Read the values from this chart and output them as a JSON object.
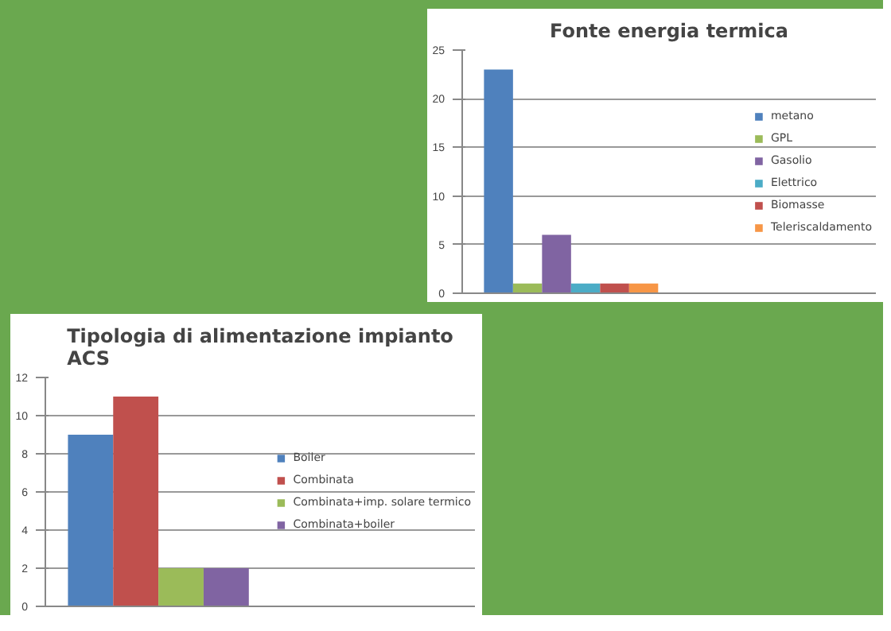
{
  "chart_data": [
    {
      "type": "bar",
      "title": "Fonte energia termica",
      "categories": [
        null
      ],
      "ylim": [
        0,
        25
      ],
      "yticks": [
        0,
        5,
        10,
        15,
        20,
        25
      ],
      "grid": "y",
      "legend": "right",
      "tick_labels": "y",
      "series": [
        {
          "name": "metano",
          "color": "#4f81bd",
          "values": [
            23
          ]
        },
        {
          "name": "GPL",
          "color": "#9bbb59",
          "values": [
            1
          ]
        },
        {
          "name": "Gasolio",
          "color": "#8064a2",
          "values": [
            6
          ]
        },
        {
          "name": "Elettrico",
          "color": "#4bacc6",
          "values": [
            1
          ]
        },
        {
          "name": "Biomasse",
          "color": "#c0504d",
          "values": [
            1
          ]
        },
        {
          "name": "Teleriscaldamento",
          "color": "#f79646",
          "values": [
            1
          ]
        }
      ]
    },
    {
      "type": "bar",
      "title": "Tipologia di alimentazione impianto\nACS",
      "categories": [
        null
      ],
      "ylim": [
        0,
        12
      ],
      "yticks": [
        0,
        2,
        4,
        6,
        8,
        10,
        12
      ],
      "grid": "y",
      "legend": "right",
      "tick_labels": "y",
      "series": [
        {
          "name": "Boiler",
          "color": "#4f81bd",
          "values": [
            9
          ]
        },
        {
          "name": "Combinata",
          "color": "#c0504d",
          "values": [
            11
          ]
        },
        {
          "name": "Combinata+imp. solare termico",
          "color": "#9bbb59",
          "values": [
            2
          ]
        },
        {
          "name": "Combinata+boiler",
          "color": "#8064a2",
          "values": [
            2
          ]
        }
      ]
    }
  ]
}
